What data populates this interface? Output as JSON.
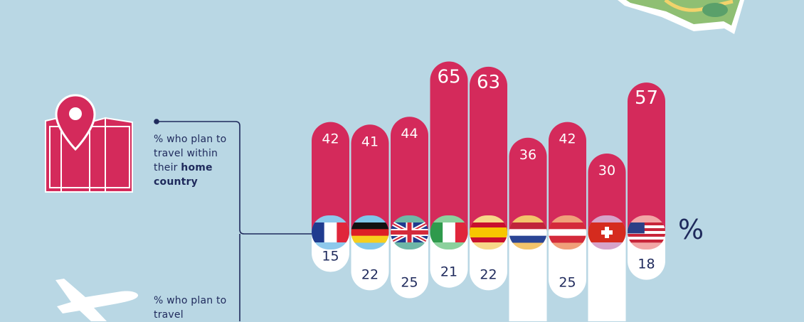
{
  "legend": {
    "home_prefix": "% who plan to travel within their",
    "home_bold": "home country",
    "abroad_prefix": "% who plan to travel"
  },
  "unit_label": "%",
  "icons": [
    "map-pin-icon",
    "folded-map-icon",
    "airplane-icon",
    "travel-map-icon"
  ],
  "colors": {
    "background": "#b9d7e4",
    "home_bar": "#d42a5b",
    "abroad_bar": "#ffffff",
    "text_dark": "#1f2a5c"
  },
  "chart_data": {
    "type": "bar",
    "categories": [
      "France",
      "Germany",
      "United Kingdom",
      "Italy",
      "Spain",
      "Netherlands",
      "Austria",
      "Switzerland",
      "United States"
    ],
    "series": [
      {
        "name": "% who plan to travel within their home country",
        "values": [
          42,
          41,
          44,
          65,
          63,
          36,
          42,
          30,
          57
        ]
      },
      {
        "name": "% who plan to travel",
        "values": [
          15,
          22,
          25,
          21,
          22,
          null,
          25,
          null,
          18
        ]
      }
    ],
    "value_labels": {
      "home": [
        "42",
        "41",
        "44",
        "65",
        "63",
        "36",
        "42",
        "30",
        "57"
      ],
      "abroad": [
        "15",
        "22",
        "25",
        "21",
        "22",
        "",
        "25",
        "",
        "18"
      ]
    }
  }
}
